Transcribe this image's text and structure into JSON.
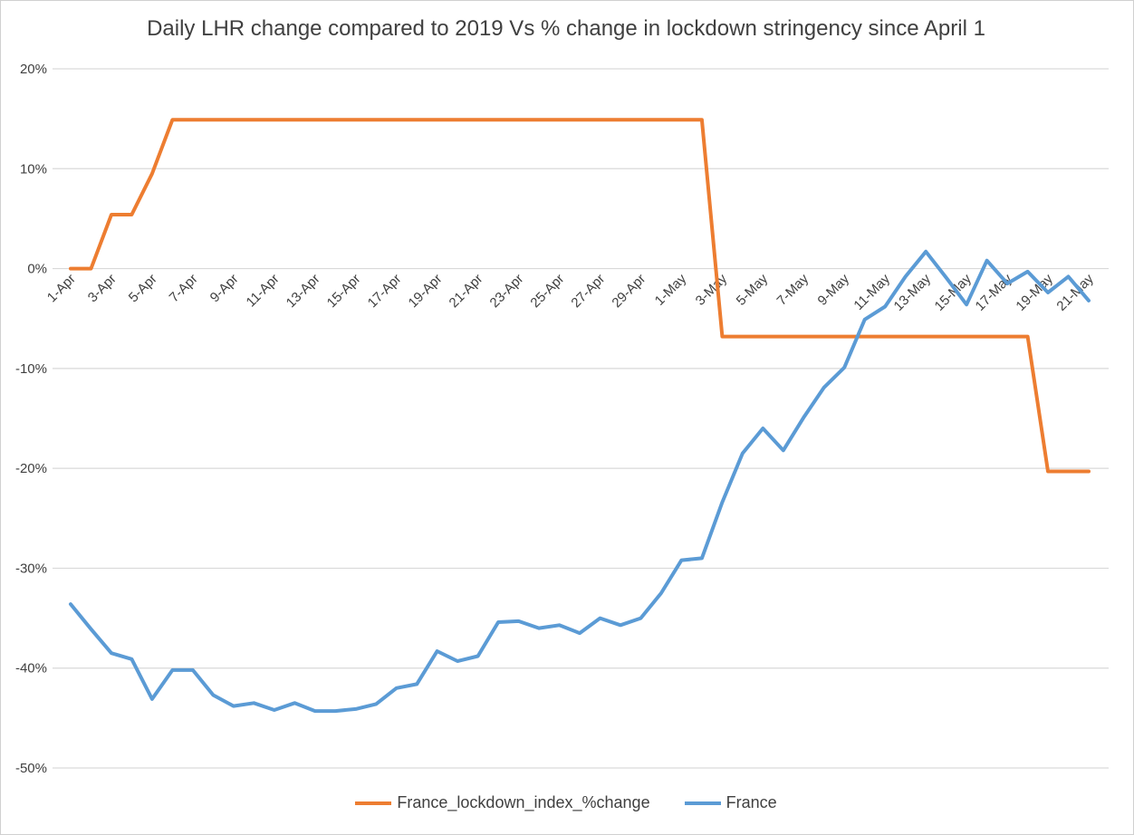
{
  "chart_data": {
    "type": "line",
    "title": "Daily LHR change compared to 2019 Vs % change in lockdown stringency since April 1",
    "xlabel": "",
    "ylabel": "",
    "ylim": [
      -50,
      20
    ],
    "y_ticks": [
      "20%",
      "10%",
      "0%",
      "-10%",
      "-20%",
      "-30%",
      "-40%",
      "-50%"
    ],
    "y_tick_values": [
      20,
      10,
      0,
      -10,
      -20,
      -30,
      -40,
      -50
    ],
    "grid": true,
    "legend_position": "bottom",
    "x": [
      "1-Apr",
      "2-Apr",
      "3-Apr",
      "4-Apr",
      "5-Apr",
      "6-Apr",
      "7-Apr",
      "8-Apr",
      "9-Apr",
      "10-Apr",
      "11-Apr",
      "12-Apr",
      "13-Apr",
      "14-Apr",
      "15-Apr",
      "16-Apr",
      "17-Apr",
      "18-Apr",
      "19-Apr",
      "20-Apr",
      "21-Apr",
      "22-Apr",
      "23-Apr",
      "24-Apr",
      "25-Apr",
      "26-Apr",
      "27-Apr",
      "28-Apr",
      "29-Apr",
      "30-Apr",
      "1-May",
      "2-May",
      "3-May",
      "4-May",
      "5-May",
      "6-May",
      "7-May",
      "8-May",
      "9-May",
      "10-May",
      "11-May",
      "12-May",
      "13-May",
      "14-May",
      "15-May",
      "16-May",
      "17-May",
      "18-May",
      "19-May",
      "20-May",
      "21-May"
    ],
    "x_tick_labels": [
      "1-Apr",
      "3-Apr",
      "5-Apr",
      "7-Apr",
      "9-Apr",
      "11-Apr",
      "13-Apr",
      "15-Apr",
      "17-Apr",
      "19-Apr",
      "21-Apr",
      "23-Apr",
      "25-Apr",
      "27-Apr",
      "29-Apr",
      "1-May",
      "3-May",
      "5-May",
      "7-May",
      "9-May",
      "11-May",
      "13-May",
      "15-May",
      "17-May",
      "19-May",
      "21-May"
    ],
    "series": [
      {
        "name": "France_lockdown_index_%change",
        "color": "#ED7D31",
        "values": [
          0,
          0,
          5.4,
          5.4,
          9.5,
          14.9,
          14.9,
          14.9,
          14.9,
          14.9,
          14.9,
          14.9,
          14.9,
          14.9,
          14.9,
          14.9,
          14.9,
          14.9,
          14.9,
          14.9,
          14.9,
          14.9,
          14.9,
          14.9,
          14.9,
          14.9,
          14.9,
          14.9,
          14.9,
          14.9,
          14.9,
          14.9,
          -6.8,
          -6.8,
          -6.8,
          -6.8,
          -6.8,
          -6.8,
          -6.8,
          -6.8,
          -6.8,
          -6.8,
          -6.8,
          -6.8,
          -6.8,
          -6.8,
          -6.8,
          -6.8,
          -20.3,
          -20.3,
          -20.3
        ]
      },
      {
        "name": "France",
        "color": "#5B9BD5",
        "values": [
          -33.6,
          -36.1,
          -38.5,
          -39.1,
          -43.1,
          -40.2,
          -40.2,
          -42.7,
          -43.8,
          -43.5,
          -44.2,
          -43.5,
          -44.3,
          -44.3,
          -44.1,
          -43.6,
          -42.0,
          -41.6,
          -38.3,
          -39.3,
          -38.8,
          -35.4,
          -35.3,
          -36.0,
          -35.7,
          -36.5,
          -35.0,
          -35.7,
          -35.0,
          -32.5,
          -29.2,
          -29.0,
          -23.4,
          -18.5,
          -16.0,
          -18.2,
          -14.9,
          -11.9,
          -9.9,
          -5.1,
          -3.8,
          -0.8,
          1.7,
          -0.9,
          -3.6,
          0.8,
          -1.5,
          -0.3,
          -2.4,
          -0.8,
          -3.2
        ]
      }
    ]
  }
}
